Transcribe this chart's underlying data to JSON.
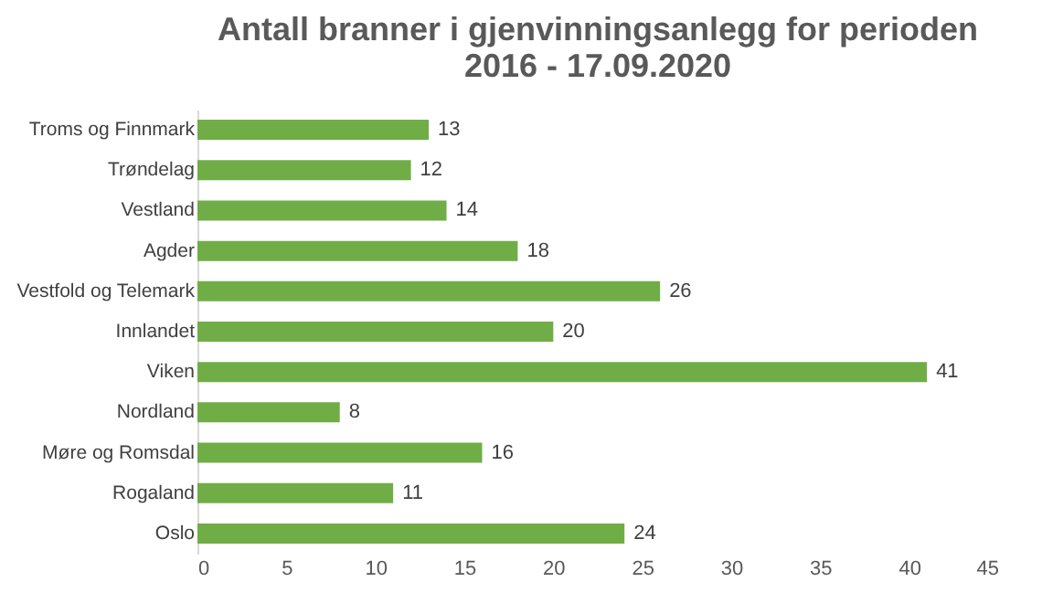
{
  "chart_data": {
    "type": "bar",
    "orientation": "horizontal",
    "title": "Antall branner i gjenvinningsanlegg for perioden\n2016 - 17.09.2020",
    "categories": [
      "Troms og Finnmark",
      "Trøndelag",
      "Vestland",
      "Agder",
      "Vestfold og Telemark",
      "Innlandet",
      "Viken",
      "Nordland",
      "Møre og Romsdal",
      "Rogaland",
      "Oslo"
    ],
    "values": [
      13,
      12,
      14,
      18,
      26,
      20,
      41,
      8,
      16,
      11,
      24
    ],
    "color": "#70ad47",
    "xlim": [
      0,
      45
    ],
    "xticks": [
      0,
      5,
      10,
      15,
      20,
      25,
      30,
      35,
      40,
      45
    ],
    "data_labels": true,
    "grid": false
  }
}
